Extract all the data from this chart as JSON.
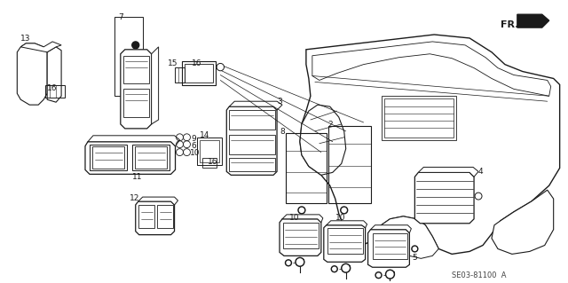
{
  "background_color": "#ffffff",
  "line_color": "#1a1a1a",
  "diagram_code": "SE03-81100  A",
  "lw_main": 0.8,
  "lw_thin": 0.5,
  "figsize": [
    6.4,
    3.19
  ],
  "dpi": 100
}
